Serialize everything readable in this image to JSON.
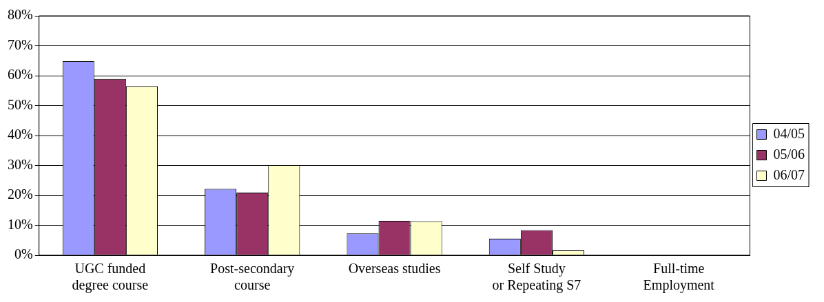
{
  "chart_data": {
    "type": "bar",
    "categories": [
      "UGC funded\ndegree course",
      "Post-secondary\ncourse",
      "Overseas studies",
      "Self Study\nor Repeating S7",
      "Full-time\nEmployment"
    ],
    "series": [
      {
        "name": "04/05",
        "color": "#9999ff",
        "values": [
          64.8,
          22.2,
          7.3,
          5.5,
          0
        ]
      },
      {
        "name": "05/06",
        "color": "#993366",
        "values": [
          58.9,
          20.9,
          11.5,
          8.4,
          0
        ]
      },
      {
        "name": "06/07",
        "color": "#ffffcc",
        "values": [
          56.5,
          30.1,
          11.3,
          1.6,
          0
        ]
      }
    ],
    "ylim": [
      0,
      80
    ],
    "yticks": [
      {
        "value": 0,
        "label": "0%"
      },
      {
        "value": 10,
        "label": "10%"
      },
      {
        "value": 20,
        "label": "20%"
      },
      {
        "value": 30,
        "label": "30%"
      },
      {
        "value": 40,
        "label": "40%"
      },
      {
        "value": 50,
        "label": "50%"
      },
      {
        "value": 60,
        "label": "60%"
      },
      {
        "value": 70,
        "label": "70%"
      },
      {
        "value": 80,
        "label": "80%"
      }
    ],
    "grid": "y",
    "legend": "right"
  }
}
